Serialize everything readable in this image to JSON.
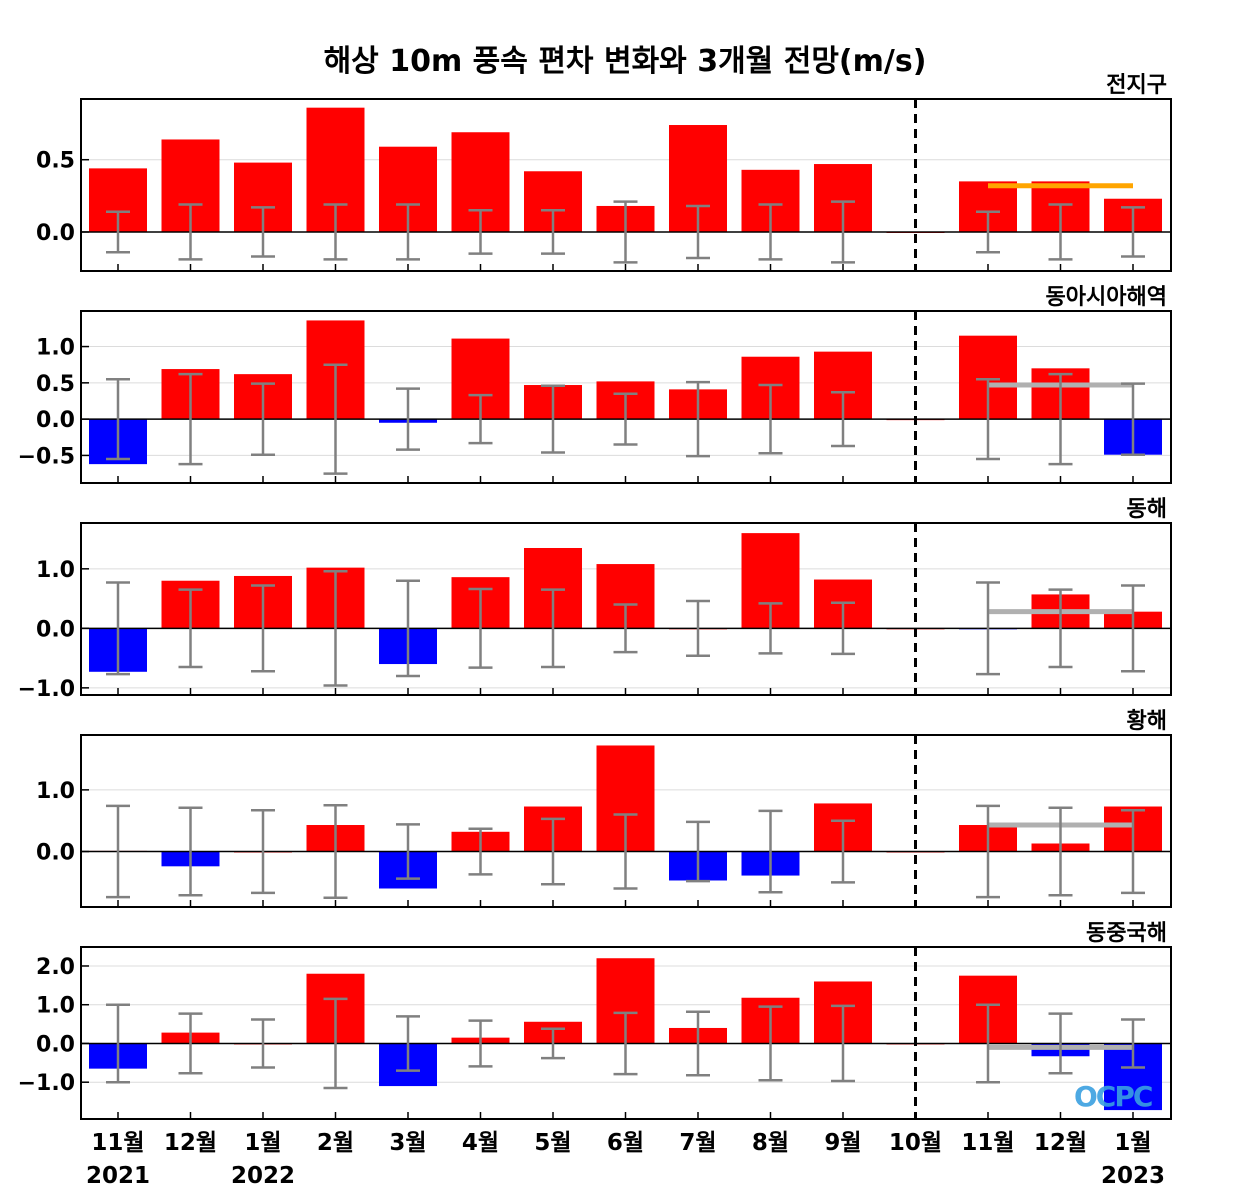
{
  "chart_data": {
    "type": "bar",
    "title": "해상 10m 풍속 편차 변화와 3개월 전망(m/s)",
    "categories": [
      "11월",
      "12월",
      "1월",
      "2월",
      "3월",
      "4월",
      "5월",
      "6월",
      "7월",
      "8월",
      "9월",
      "10월",
      "11월",
      "12월",
      "1월"
    ],
    "year_labels": {
      "0": "2021",
      "2": "2022",
      "14": "2023"
    },
    "forecast_divider_after_category": "10월",
    "colors": {
      "positive": "#ff0000",
      "negative": "#0000ff",
      "error_bar": "#808080",
      "forecast_global": "#ffa500",
      "forecast_regional": "#b0b0b0"
    },
    "grid": true,
    "panels": [
      {
        "name": "전지구",
        "ylim": [
          -0.27,
          0.92
        ],
        "yticks": [
          0.0,
          0.5
        ],
        "yticklabels": [
          "0.0",
          "0.5"
        ],
        "values": [
          0.44,
          0.64,
          0.48,
          0.86,
          0.59,
          0.69,
          0.42,
          0.18,
          0.74,
          0.43,
          0.47,
          0,
          0.35,
          0.35,
          0.23
        ],
        "errors": [
          0.14,
          0.19,
          0.17,
          0.19,
          0.19,
          0.15,
          0.15,
          0.21,
          0.18,
          0.19,
          0.21,
          null,
          0.14,
          0.19,
          0.17
        ],
        "forecast_line": 0.32,
        "forecast_color": "#ffa500"
      },
      {
        "name": "동아시아해역",
        "ylim": [
          -0.88,
          1.49
        ],
        "yticks": [
          -0.5,
          0.0,
          0.5,
          1.0
        ],
        "yticklabels": [
          "−0.5",
          "0.0",
          "0.5",
          "1.0"
        ],
        "values": [
          -0.62,
          0.69,
          0.62,
          1.36,
          -0.05,
          1.11,
          0.47,
          0.52,
          0.41,
          0.86,
          0.93,
          0,
          1.15,
          0.7,
          -0.49
        ],
        "errors": [
          0.55,
          0.62,
          0.49,
          0.75,
          0.42,
          0.33,
          0.46,
          0.35,
          0.51,
          0.47,
          0.37,
          null,
          0.55,
          0.62,
          0.49
        ],
        "forecast_line": 0.47,
        "forecast_color": "#b0b0b0"
      },
      {
        "name": "동해",
        "ylim": [
          -1.12,
          1.77
        ],
        "yticks": [
          -1.0,
          0.0,
          1.0
        ],
        "yticklabels": [
          "−1.0",
          "0.0",
          "1.0"
        ],
        "values": [
          -0.73,
          0.8,
          0.88,
          1.02,
          -0.6,
          0.86,
          1.35,
          1.08,
          0,
          1.6,
          0.82,
          0,
          -0.01,
          0.57,
          0.28
        ],
        "errors": [
          0.77,
          0.65,
          0.72,
          0.96,
          0.8,
          0.66,
          0.65,
          0.4,
          0.46,
          0.42,
          0.43,
          null,
          0.77,
          0.65,
          0.72
        ],
        "forecast_line": 0.28,
        "forecast_color": "#b0b0b0"
      },
      {
        "name": "황해",
        "ylim": [
          -0.9,
          1.89
        ],
        "yticks": [
          0.0,
          1.0
        ],
        "yticklabels": [
          "0.0",
          "1.0"
        ],
        "values": [
          0.01,
          -0.24,
          0,
          0.43,
          -0.6,
          0.32,
          0.73,
          1.72,
          -0.47,
          -0.39,
          0.78,
          0,
          0.43,
          0.13,
          0.73
        ],
        "errors": [
          0.74,
          0.71,
          0.67,
          0.75,
          0.44,
          0.37,
          0.53,
          0.6,
          0.48,
          0.66,
          0.5,
          null,
          0.74,
          0.71,
          0.67
        ],
        "forecast_line": 0.43,
        "forecast_color": "#b0b0b0"
      },
      {
        "name": "동중국해",
        "ylim": [
          -1.95,
          2.49
        ],
        "yticks": [
          -1.0,
          0.0,
          1.0,
          2.0
        ],
        "yticklabels": [
          "−1.0",
          "0.0",
          "1.0",
          "2.0"
        ],
        "values": [
          -0.65,
          0.28,
          0,
          1.8,
          -1.1,
          0.15,
          0.56,
          2.2,
          0.4,
          1.18,
          1.6,
          0,
          1.75,
          -0.33,
          -1.72
        ],
        "errors": [
          1.0,
          0.77,
          0.62,
          1.15,
          0.7,
          0.59,
          0.38,
          0.79,
          0.82,
          0.95,
          0.97,
          null,
          1.0,
          0.77,
          0.62
        ],
        "forecast_line": -0.1,
        "forecast_color": "#b0b0b0"
      }
    ]
  },
  "logo_text": "OCPC"
}
